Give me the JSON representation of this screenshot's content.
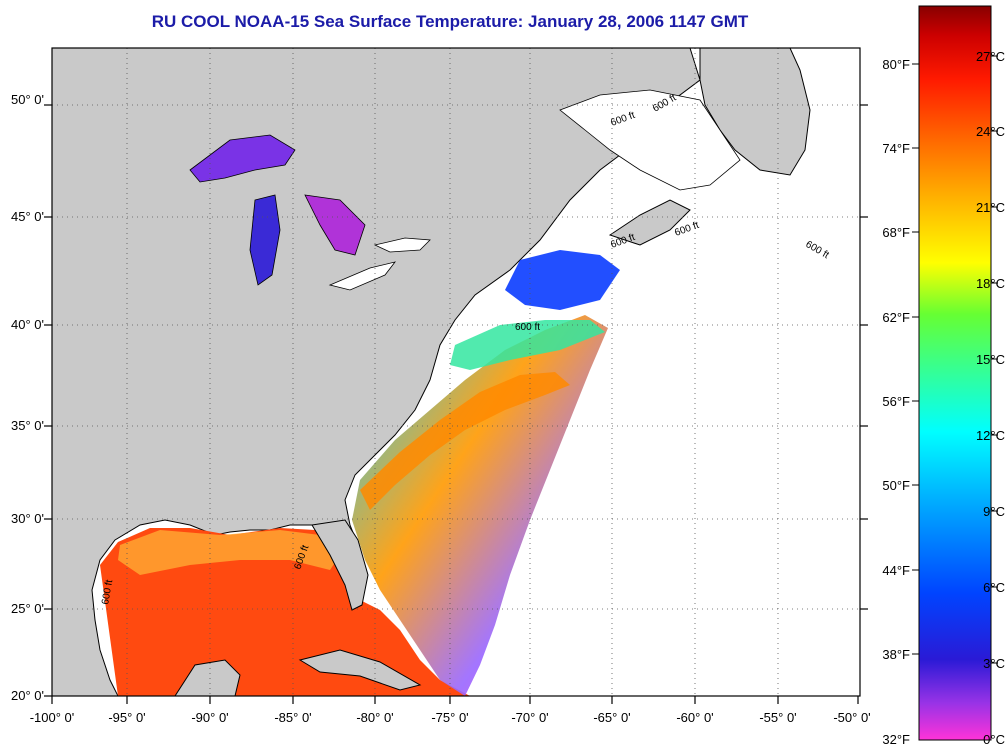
{
  "title": "RU COOL  NOAA-15  Sea Surface Temperature:  January 28, 2006 1147 GMT",
  "map": {
    "lon_labels": [
      "-100° 0'",
      "-95° 0'",
      "-90° 0'",
      "-85° 0'",
      "-80° 0'",
      "-75° 0'",
      "-70° 0'",
      "-65° 0'",
      "-60° 0'",
      "-55° 0'",
      "-50° 0'"
    ],
    "lat_labels": [
      "50° 0'",
      "45° 0'",
      "40° 0'",
      "35° 0'",
      "30° 0'",
      "25° 0'",
      "20° 0'"
    ],
    "isobath_labels": [
      "600 ft",
      "600 ft",
      "600 ft",
      "600 ft",
      "600 ft",
      "600 ft",
      "600 ft",
      "600 ft"
    ],
    "colors": {
      "land": "#c9c9c9",
      "water": "#ffffff",
      "coast": "#000000"
    }
  },
  "colorbar": {
    "fahrenheit_labels": [
      "80°F",
      "74°F",
      "68°F",
      "62°F",
      "56°F",
      "50°F",
      "44°F",
      "38°F",
      "32°F"
    ],
    "celsius_labels": [
      "27°C",
      "24°C",
      "21°C",
      "18°C",
      "15°C",
      "12°C",
      "9°C",
      "6°C",
      "3°C",
      "0°C"
    ],
    "stops": [
      "#ff33d8",
      "#9933e6",
      "#2a1ad6",
      "#0044ff",
      "#00a8ff",
      "#00ffff",
      "#33ff99",
      "#66ff33",
      "#ffff00",
      "#ffb000",
      "#ff6600",
      "#ff1a00",
      "#cc0000",
      "#880000"
    ]
  }
}
